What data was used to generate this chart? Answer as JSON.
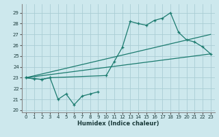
{
  "xlabel": "Humidex (Indice chaleur)",
  "xlim": [
    -0.5,
    23.5
  ],
  "ylim": [
    19.8,
    29.8
  ],
  "yticks": [
    20,
    21,
    22,
    23,
    24,
    25,
    26,
    27,
    28,
    29
  ],
  "xticks": [
    0,
    1,
    2,
    3,
    4,
    5,
    6,
    7,
    8,
    9,
    10,
    11,
    12,
    13,
    14,
    15,
    16,
    17,
    18,
    19,
    20,
    21,
    22,
    23
  ],
  "bg_color": "#cde8ed",
  "grid_color": "#aacdd4",
  "line_color": "#1a7a6e",
  "upper_x": [
    0,
    1,
    2,
    3,
    10,
    11,
    12,
    13,
    14,
    15,
    16,
    17,
    18,
    19,
    20,
    21,
    22,
    23
  ],
  "upper_y": [
    23.0,
    22.9,
    22.85,
    23.0,
    23.2,
    24.5,
    25.8,
    28.2,
    28.0,
    27.85,
    28.3,
    28.5,
    29.0,
    27.2,
    26.5,
    26.3,
    25.85,
    25.2
  ],
  "lower_x": [
    0,
    1,
    2,
    3,
    4,
    5,
    6,
    7,
    8,
    9
  ],
  "lower_y": [
    23.0,
    22.9,
    22.85,
    23.0,
    21.0,
    21.5,
    20.5,
    21.3,
    21.5,
    21.7
  ],
  "trend1_x": [
    0,
    23
  ],
  "trend1_y": [
    23.0,
    25.2
  ],
  "trend2_x": [
    0,
    23
  ],
  "trend2_y": [
    23.0,
    27.0
  ],
  "xlabel_fontsize": 6.0,
  "tick_fontsize": 5.0
}
